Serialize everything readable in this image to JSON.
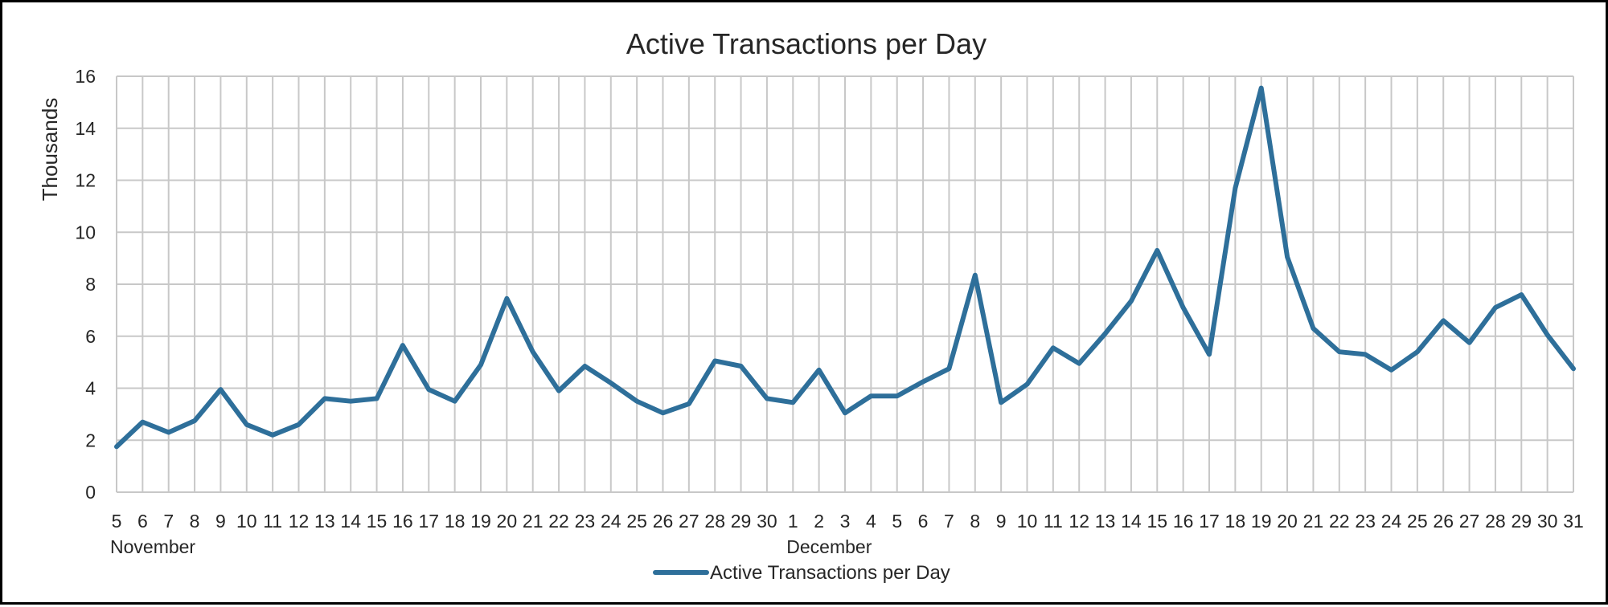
{
  "chart_data": {
    "type": "line",
    "title": "Active Transactions per Day",
    "ylabel": "Thousands",
    "xlabel": "",
    "ylim": [
      0,
      16
    ],
    "y_ticks": [
      0,
      2,
      4,
      6,
      8,
      10,
      12,
      14,
      16
    ],
    "grid": true,
    "legend_position": "bottom",
    "color": "#2E6F9A",
    "x_groups": [
      {
        "label": "November",
        "start_index": 0
      },
      {
        "label": "December",
        "start_index": 26
      }
    ],
    "categories": [
      "5",
      "6",
      "7",
      "8",
      "9",
      "10",
      "11",
      "12",
      "13",
      "14",
      "15",
      "16",
      "17",
      "18",
      "19",
      "20",
      "21",
      "22",
      "23",
      "24",
      "25",
      "26",
      "27",
      "28",
      "29",
      "30",
      "1",
      "2",
      "3",
      "4",
      "5",
      "6",
      "7",
      "8",
      "9",
      "10",
      "11",
      "12",
      "13",
      "14",
      "15",
      "16",
      "17",
      "18",
      "19",
      "20",
      "21",
      "22",
      "23",
      "24",
      "25",
      "26",
      "27",
      "28",
      "29",
      "30",
      "31"
    ],
    "series": [
      {
        "name": "Active Transactions per Day",
        "values": [
          1.75,
          2.7,
          2.3,
          2.75,
          3.95,
          2.6,
          2.2,
          2.6,
          3.6,
          3.5,
          3.6,
          5.65,
          3.95,
          3.5,
          4.9,
          7.45,
          5.4,
          3.9,
          4.85,
          4.2,
          3.5,
          3.05,
          3.4,
          5.05,
          4.85,
          3.6,
          3.45,
          4.7,
          3.05,
          3.7,
          3.7,
          4.25,
          4.75,
          8.35,
          3.45,
          4.15,
          5.55,
          4.95,
          6.1,
          7.35,
          9.3,
          7.1,
          5.3,
          11.7,
          15.55,
          9.05,
          6.3,
          5.4,
          5.3,
          4.7,
          5.4,
          6.6,
          5.75,
          7.1,
          7.6,
          6.05,
          4.75
        ]
      }
    ]
  }
}
